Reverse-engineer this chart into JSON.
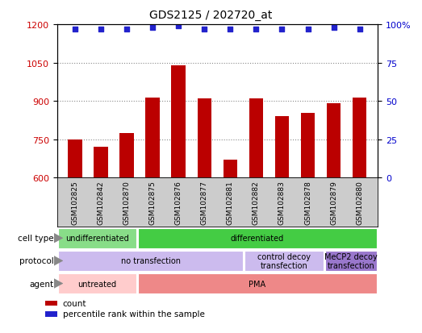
{
  "title": "GDS2125 / 202720_at",
  "samples": [
    "GSM102825",
    "GSM102842",
    "GSM102870",
    "GSM102875",
    "GSM102876",
    "GSM102877",
    "GSM102881",
    "GSM102882",
    "GSM102883",
    "GSM102878",
    "GSM102879",
    "GSM102880"
  ],
  "counts": [
    750,
    720,
    775,
    915,
    1040,
    910,
    670,
    910,
    840,
    855,
    890,
    915
  ],
  "percentile_ranks": [
    97,
    97,
    97,
    98,
    99,
    97,
    97,
    97,
    97,
    97,
    98,
    97
  ],
  "ylim_left": [
    600,
    1200
  ],
  "ylim_right": [
    0,
    100
  ],
  "yticks_left": [
    600,
    750,
    900,
    1050,
    1200
  ],
  "yticks_right": [
    0,
    25,
    50,
    75,
    100
  ],
  "ytick_right_labels": [
    "0",
    "25",
    "50",
    "75",
    "100%"
  ],
  "bar_color": "#bb0000",
  "dot_color": "#2222cc",
  "chart_bg": "#ffffff",
  "xtick_bg": "#cccccc",
  "annotation_rows": [
    {
      "label": "cell type",
      "segments": [
        {
          "text": "undifferentiated",
          "start": 0,
          "end": 3,
          "color": "#88dd88"
        },
        {
          "text": "differentiated",
          "start": 3,
          "end": 12,
          "color": "#44cc44"
        }
      ]
    },
    {
      "label": "protocol",
      "segments": [
        {
          "text": "no transfection",
          "start": 0,
          "end": 7,
          "color": "#ccbbee"
        },
        {
          "text": "control decoy\ntransfection",
          "start": 7,
          "end": 10,
          "color": "#ccbbee"
        },
        {
          "text": "MeCP2 decoy\ntransfection",
          "start": 10,
          "end": 12,
          "color": "#9977cc"
        }
      ]
    },
    {
      "label": "agent",
      "segments": [
        {
          "text": "untreated",
          "start": 0,
          "end": 3,
          "color": "#ffcccc"
        },
        {
          "text": "PMA",
          "start": 3,
          "end": 12,
          "color": "#ee8888"
        }
      ]
    }
  ],
  "legend_items": [
    {
      "color": "#bb0000",
      "label": "count"
    },
    {
      "color": "#2222cc",
      "label": "percentile rank within the sample"
    }
  ],
  "grid_color": "#888888",
  "left_tick_color": "#cc0000",
  "right_tick_color": "#0000cc"
}
